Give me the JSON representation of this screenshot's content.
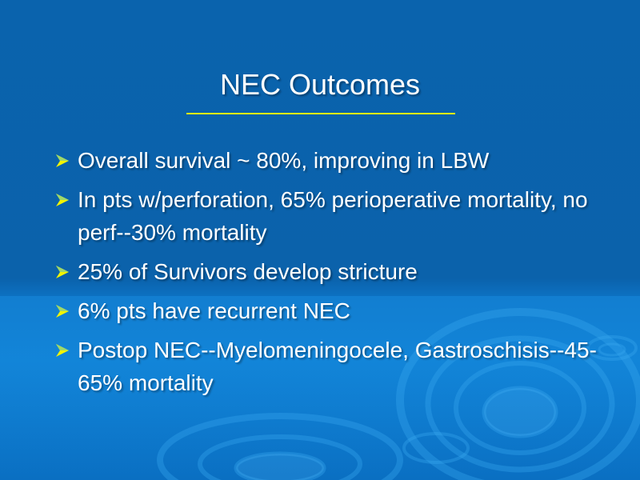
{
  "slide": {
    "title": "NEC Outcomes",
    "accent_color": "#f2f400",
    "bullet_icon": "arrow-bullet-icon",
    "bullets": [
      {
        "text": "Overall survival ~ 80%, improving in LBW"
      },
      {
        "text": "In pts w/perforation, 65% perioperative mortality, no perf--30% mortality"
      },
      {
        "text": "25% of Survivors develop stricture"
      },
      {
        "text": "6% pts have recurrent NEC"
      },
      {
        "text": "Postop NEC--Myelomeningocele, Gastroschisis--45-65% mortality"
      }
    ]
  }
}
